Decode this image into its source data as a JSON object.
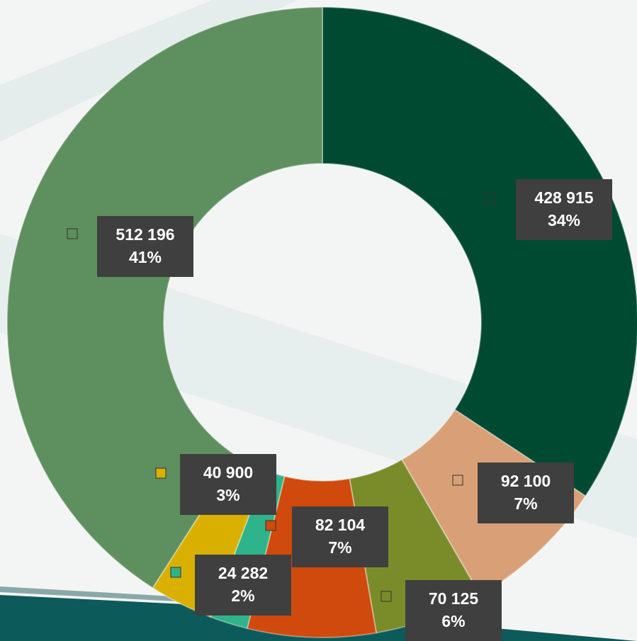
{
  "chart_data": {
    "type": "donut",
    "values": [
      428915,
      92100,
      70125,
      82104,
      24282,
      40900,
      512196
    ],
    "value_labels": [
      "428 915",
      "92 100",
      "70 125",
      "82 104",
      "24 282",
      "40 900",
      "512 196"
    ],
    "percent_labels": [
      "34%",
      "7%",
      "6%",
      "7%",
      "2%",
      "3%",
      "41%"
    ],
    "colors": [
      "#004a32",
      "#d9a077",
      "#7a8c2a",
      "#cf4a0c",
      "#2fb38a",
      "#d9b000",
      "#5e8f5e"
    ]
  }
}
